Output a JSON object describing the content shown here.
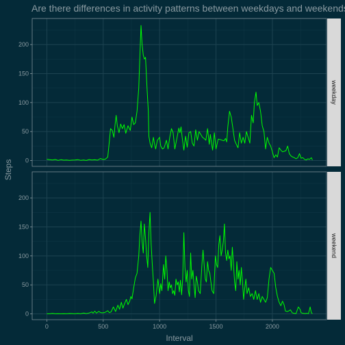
{
  "colors": {
    "background": "#042a38",
    "panel": "#042a38",
    "panel_border": "#7f8f96",
    "grid_major": "#1d4351",
    "grid_minor": "#0f3644",
    "strip_fill": "#d9d9d9",
    "strip_text": "#1a1a1a",
    "text": "#8a9aa1",
    "line": "#00ff00"
  },
  "chart_data": {
    "type": "line",
    "title": "Are there differences in activity patterns between weekdays and weekends?",
    "xlabel": "Interval",
    "ylabel": "Steps",
    "xlim": [
      -130,
      2480
    ],
    "ylim": [
      -10,
      245
    ],
    "x_ticks": [
      0,
      500,
      1000,
      1500,
      2000
    ],
    "y_ticks": [
      0,
      50,
      100,
      150,
      200
    ],
    "grid": true,
    "facet_by": "day type (right strip)",
    "series": [
      {
        "name": "weekday",
        "points": [
          [
            0,
            2.3
          ],
          [
            25,
            1.5
          ],
          [
            50,
            1.0
          ],
          [
            75,
            1.8
          ],
          [
            100,
            0.3
          ],
          [
            125,
            1.4
          ],
          [
            150,
            0.6
          ],
          [
            175,
            1.0
          ],
          [
            200,
            0.3
          ],
          [
            225,
            0.8
          ],
          [
            250,
            0.9
          ],
          [
            275,
            1.6
          ],
          [
            300,
            0.4
          ],
          [
            325,
            0.9
          ],
          [
            350,
            0.2
          ],
          [
            375,
            1.7
          ],
          [
            400,
            0.9
          ],
          [
            425,
            1.3
          ],
          [
            450,
            0.6
          ],
          [
            475,
            3.5
          ],
          [
            500,
            1.8
          ],
          [
            520,
            2.5
          ],
          [
            540,
            6.0
          ],
          [
            555,
            35
          ],
          [
            565,
            55
          ],
          [
            580,
            52
          ],
          [
            595,
            40
          ],
          [
            605,
            62
          ],
          [
            615,
            78
          ],
          [
            625,
            60
          ],
          [
            640,
            48
          ],
          [
            655,
            63
          ],
          [
            670,
            55
          ],
          [
            685,
            62
          ],
          [
            700,
            47
          ],
          [
            720,
            60
          ],
          [
            740,
            52
          ],
          [
            755,
            75
          ],
          [
            770,
            62
          ],
          [
            785,
            65
          ],
          [
            800,
            85
          ],
          [
            815,
            125
          ],
          [
            825,
            178
          ],
          [
            835,
            233
          ],
          [
            845,
            200
          ],
          [
            855,
            182
          ],
          [
            865,
            175
          ],
          [
            875,
            178
          ],
          [
            890,
            120
          ],
          [
            900,
            85
          ],
          [
            905,
            42
          ],
          [
            915,
            30
          ],
          [
            930,
            22
          ],
          [
            945,
            40
          ],
          [
            955,
            28
          ],
          [
            965,
            20
          ],
          [
            980,
            35
          ],
          [
            1000,
            40
          ],
          [
            1010,
            25
          ],
          [
            1025,
            20
          ],
          [
            1040,
            22
          ],
          [
            1060,
            35
          ],
          [
            1075,
            20
          ],
          [
            1090,
            40
          ],
          [
            1105,
            55
          ],
          [
            1120,
            48
          ],
          [
            1135,
            20
          ],
          [
            1155,
            40
          ],
          [
            1170,
            56
          ],
          [
            1180,
            48
          ],
          [
            1190,
            58
          ],
          [
            1200,
            40
          ],
          [
            1215,
            18
          ],
          [
            1230,
            42
          ],
          [
            1245,
            23
          ],
          [
            1260,
            48
          ],
          [
            1275,
            50
          ],
          [
            1290,
            30
          ],
          [
            1305,
            25
          ],
          [
            1320,
            53
          ],
          [
            1335,
            35
          ],
          [
            1350,
            50
          ],
          [
            1365,
            45
          ],
          [
            1380,
            40
          ],
          [
            1395,
            38
          ],
          [
            1410,
            35
          ],
          [
            1425,
            55
          ],
          [
            1440,
            28
          ],
          [
            1450,
            45
          ],
          [
            1460,
            30
          ],
          [
            1470,
            18
          ],
          [
            1485,
            48
          ],
          [
            1500,
            20
          ],
          [
            1520,
            37
          ],
          [
            1540,
            36
          ],
          [
            1555,
            35
          ],
          [
            1570,
            34
          ],
          [
            1585,
            38
          ],
          [
            1595,
            32
          ],
          [
            1605,
            58
          ],
          [
            1620,
            85
          ],
          [
            1635,
            75
          ],
          [
            1650,
            55
          ],
          [
            1665,
            35
          ],
          [
            1680,
            28
          ],
          [
            1695,
            22
          ],
          [
            1710,
            48
          ],
          [
            1725,
            30
          ],
          [
            1740,
            40
          ],
          [
            1755,
            30
          ],
          [
            1770,
            50
          ],
          [
            1785,
            40
          ],
          [
            1800,
            30
          ],
          [
            1815,
            78
          ],
          [
            1830,
            65
          ],
          [
            1840,
            100
          ],
          [
            1855,
            118
          ],
          [
            1865,
            95
          ],
          [
            1880,
            100
          ],
          [
            1895,
            85
          ],
          [
            1910,
            60
          ],
          [
            1925,
            50
          ],
          [
            1940,
            20
          ],
          [
            1955,
            40
          ],
          [
            1970,
            30
          ],
          [
            1985,
            25
          ],
          [
            2000,
            15
          ],
          [
            2015,
            5
          ],
          [
            2030,
            10
          ],
          [
            2045,
            6
          ],
          [
            2060,
            22
          ],
          [
            2075,
            18
          ],
          [
            2090,
            15
          ],
          [
            2105,
            16
          ],
          [
            2120,
            17
          ],
          [
            2135,
            25
          ],
          [
            2150,
            12
          ],
          [
            2165,
            8
          ],
          [
            2180,
            6
          ],
          [
            2195,
            5
          ],
          [
            2210,
            3
          ],
          [
            2225,
            5
          ],
          [
            2240,
            12
          ],
          [
            2255,
            4
          ],
          [
            2270,
            5
          ],
          [
            2285,
            2
          ],
          [
            2300,
            1
          ],
          [
            2315,
            3
          ],
          [
            2330,
            2
          ],
          [
            2345,
            5
          ],
          [
            2355,
            1
          ]
        ]
      },
      {
        "name": "weekend",
        "points": [
          [
            0,
            0.2
          ],
          [
            25,
            0.1
          ],
          [
            50,
            0.8
          ],
          [
            75,
            0.2
          ],
          [
            100,
            0.4
          ],
          [
            125,
            0.2
          ],
          [
            150,
            0.3
          ],
          [
            175,
            0.1
          ],
          [
            200,
            0.6
          ],
          [
            225,
            0.5
          ],
          [
            250,
            0.2
          ],
          [
            275,
            0.8
          ],
          [
            300,
            0.1
          ],
          [
            325,
            1.5
          ],
          [
            350,
            0.4
          ],
          [
            375,
            1.6
          ],
          [
            400,
            3.5
          ],
          [
            410,
            1.2
          ],
          [
            425,
            4.8
          ],
          [
            440,
            1.5
          ],
          [
            460,
            4.2
          ],
          [
            480,
            2.0
          ],
          [
            500,
            1.8
          ],
          [
            520,
            3.0
          ],
          [
            540,
            5.5
          ],
          [
            555,
            2.0
          ],
          [
            570,
            3.5
          ],
          [
            590,
            12
          ],
          [
            610,
            4
          ],
          [
            630,
            15
          ],
          [
            645,
            8
          ],
          [
            660,
            20
          ],
          [
            675,
            10
          ],
          [
            690,
            18
          ],
          [
            705,
            25
          ],
          [
            720,
            16
          ],
          [
            735,
            22
          ],
          [
            745,
            30
          ],
          [
            755,
            26
          ],
          [
            770,
            45
          ],
          [
            785,
            62
          ],
          [
            800,
            70
          ],
          [
            815,
            100
          ],
          [
            825,
            135
          ],
          [
            835,
            160
          ],
          [
            845,
            125
          ],
          [
            855,
            105
          ],
          [
            865,
            155
          ],
          [
            875,
            130
          ],
          [
            885,
            100
          ],
          [
            895,
            80
          ],
          [
            905,
            140
          ],
          [
            915,
            175
          ],
          [
            925,
            120
          ],
          [
            935,
            85
          ],
          [
            945,
            55
          ],
          [
            955,
            18
          ],
          [
            970,
            32
          ],
          [
            985,
            60
          ],
          [
            1000,
            35
          ],
          [
            1010,
            52
          ],
          [
            1020,
            40
          ],
          [
            1035,
            85
          ],
          [
            1045,
            60
          ],
          [
            1055,
            100
          ],
          [
            1065,
            75
          ],
          [
            1075,
            40
          ],
          [
            1085,
            55
          ],
          [
            1095,
            45
          ],
          [
            1105,
            50
          ],
          [
            1115,
            35
          ],
          [
            1125,
            40
          ],
          [
            1135,
            32
          ],
          [
            1145,
            60
          ],
          [
            1155,
            50
          ],
          [
            1165,
            55
          ],
          [
            1175,
            38
          ],
          [
            1185,
            58
          ],
          [
            1195,
            33
          ],
          [
            1205,
            60
          ],
          [
            1215,
            140
          ],
          [
            1225,
            80
          ],
          [
            1235,
            55
          ],
          [
            1245,
            75
          ],
          [
            1255,
            40
          ],
          [
            1265,
            30
          ],
          [
            1275,
            105
          ],
          [
            1285,
            60
          ],
          [
            1295,
            75
          ],
          [
            1305,
            50
          ],
          [
            1315,
            28
          ],
          [
            1325,
            65
          ],
          [
            1335,
            55
          ],
          [
            1345,
            40
          ],
          [
            1360,
            35
          ],
          [
            1375,
            85
          ],
          [
            1385,
            110
          ],
          [
            1395,
            85
          ],
          [
            1405,
            60
          ],
          [
            1415,
            55
          ],
          [
            1425,
            90
          ],
          [
            1435,
            75
          ],
          [
            1445,
            70
          ],
          [
            1455,
            55
          ],
          [
            1465,
            40
          ],
          [
            1480,
            35
          ],
          [
            1495,
            100
          ],
          [
            1505,
            85
          ],
          [
            1515,
            80
          ],
          [
            1525,
            120
          ],
          [
            1535,
            135
          ],
          [
            1545,
            100
          ],
          [
            1555,
            110
          ],
          [
            1565,
            125
          ],
          [
            1575,
            155
          ],
          [
            1585,
            105
          ],
          [
            1595,
            92
          ],
          [
            1605,
            110
          ],
          [
            1615,
            95
          ],
          [
            1625,
            100
          ],
          [
            1635,
            75
          ],
          [
            1645,
            115
          ],
          [
            1655,
            85
          ],
          [
            1665,
            55
          ],
          [
            1675,
            40
          ],
          [
            1685,
            90
          ],
          [
            1695,
            60
          ],
          [
            1705,
            75
          ],
          [
            1715,
            50
          ],
          [
            1725,
            80
          ],
          [
            1735,
            55
          ],
          [
            1745,
            25
          ],
          [
            1755,
            45
          ],
          [
            1765,
            60
          ],
          [
            1775,
            35
          ],
          [
            1790,
            45
          ],
          [
            1805,
            30
          ],
          [
            1820,
            35
          ],
          [
            1835,
            25
          ],
          [
            1850,
            40
          ],
          [
            1865,
            25
          ],
          [
            1880,
            35
          ],
          [
            1895,
            20
          ],
          [
            1910,
            30
          ],
          [
            1925,
            25
          ],
          [
            1940,
            20
          ],
          [
            1955,
            28
          ],
          [
            1970,
            60
          ],
          [
            1985,
            80
          ],
          [
            2000,
            75
          ],
          [
            2015,
            70
          ],
          [
            2030,
            45
          ],
          [
            2045,
            30
          ],
          [
            2060,
            20
          ],
          [
            2075,
            14
          ],
          [
            2090,
            22
          ],
          [
            2105,
            15
          ],
          [
            2115,
            5
          ],
          [
            2130,
            4
          ],
          [
            2145,
            5
          ],
          [
            2160,
            7
          ],
          [
            2175,
            2
          ],
          [
            2190,
            1
          ],
          [
            2210,
            0.5
          ],
          [
            2230,
            12
          ],
          [
            2245,
            8
          ],
          [
            2255,
            2
          ],
          [
            2270,
            1
          ],
          [
            2290,
            0.5
          ],
          [
            2305,
            1
          ],
          [
            2320,
            0.3
          ],
          [
            2335,
            12
          ],
          [
            2345,
            2
          ],
          [
            2355,
            0.5
          ]
        ]
      }
    ]
  }
}
